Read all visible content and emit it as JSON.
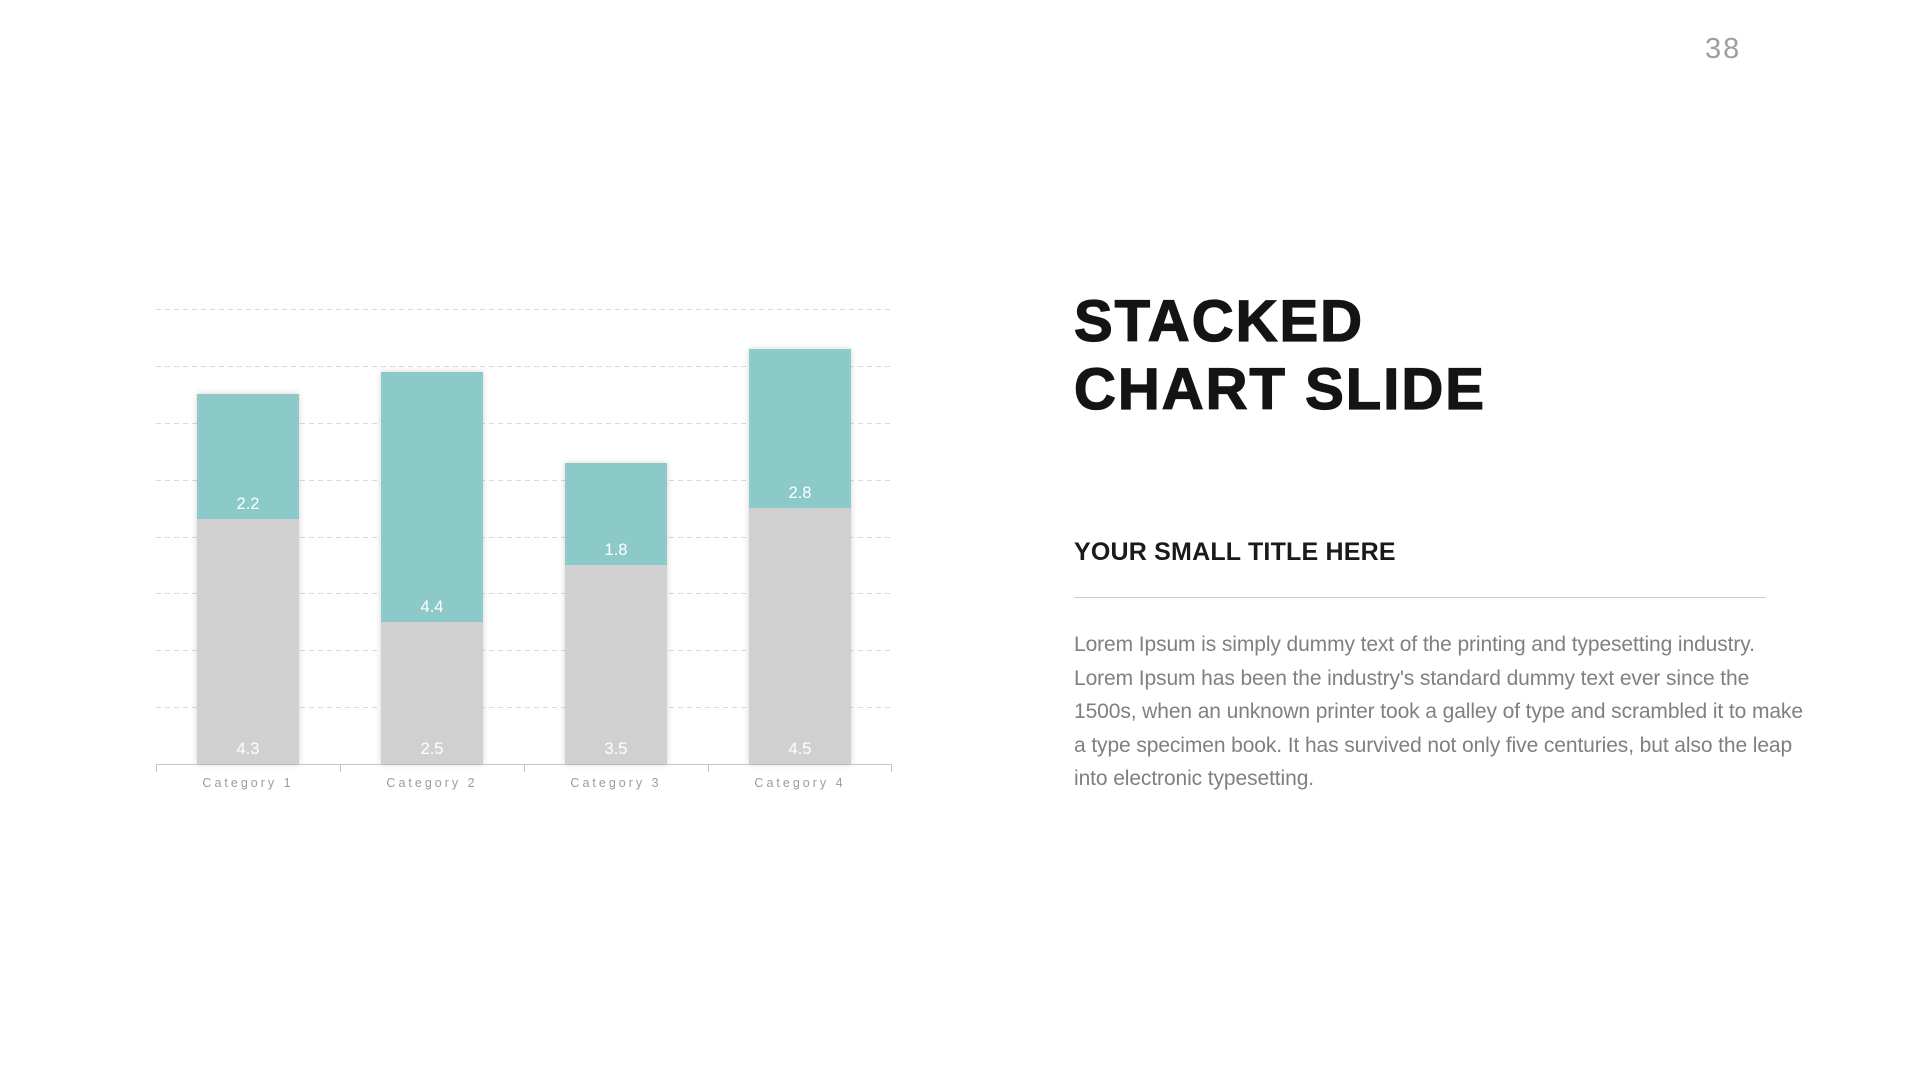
{
  "slide": {
    "page_number": "38",
    "background_color": "#ffffff"
  },
  "right_panel": {
    "title_line1": "STACKED",
    "title_line2": "CHART SLIDE",
    "subtitle": "YOUR SMALL TITLE HERE",
    "body_text": "Lorem Ipsum is simply dummy text of the printing and typesetting industry. Lorem Ipsum has been the industry's standard dummy text ever since the 1500s, when an unknown printer took a galley of type and scrambled it to make a type specimen book. It has survived not only five centuries, but also the leap into electronic typesetting."
  },
  "chart_data": {
    "type": "bar",
    "stacked": true,
    "title": "",
    "xlabel": "",
    "ylabel": "",
    "categories": [
      "Category 1",
      "Category 2",
      "Category 3",
      "Category 4"
    ],
    "series": [
      {
        "name": "gray-bottom",
        "color": "#d1d0d0",
        "values": [
          4.3,
          2.5,
          3.5,
          4.5
        ]
      },
      {
        "name": "teal-top",
        "color": "#8ccaca",
        "values": [
          2.2,
          4.4,
          1.8,
          2.8
        ]
      }
    ],
    "stack_totals": [
      6.5,
      6.9,
      5.3,
      7.3
    ],
    "ylim": [
      0,
      8
    ],
    "gridline_step": 1,
    "grid": "horizontal-dashed",
    "y_axis_labels": "none",
    "legend": "none",
    "value_label_color": "#ffffff"
  }
}
